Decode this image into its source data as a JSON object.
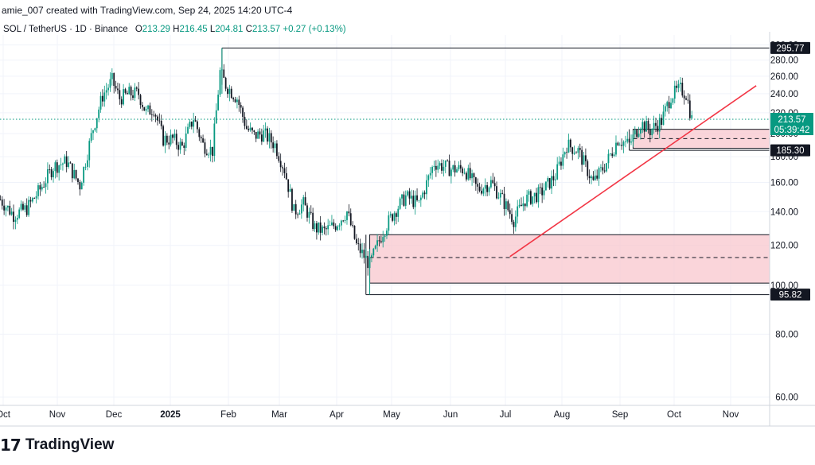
{
  "header": {
    "text": "amie_007 created with TradingView.com, Sep 24, 2025 14:20 UTC-4"
  },
  "ohlc": {
    "symbol": "SOL / TetherUS · 1D · Binance",
    "o_label": "O",
    "o": "213.29",
    "h_label": "H",
    "h": "216.45",
    "l_label": "L",
    "l": "204.81",
    "c_label": "C",
    "c": "213.57",
    "change": "+0.27 (+0.13%)"
  },
  "branding": {
    "logo_mark": "17",
    "name": "TradingView"
  },
  "colors": {
    "up": "#089981",
    "down": "#131722",
    "trendline": "#f23645",
    "zone_fill": "#f8c7cd",
    "last_price": "#089981"
  },
  "chart_data": {
    "type": "candlestick",
    "title": "SOL / TetherUS · 1D · Binance",
    "y_scale": "log",
    "ylim": [
      55,
      300
    ],
    "y_ticks": [
      "300.00",
      "280.00",
      "260.00",
      "240.00",
      "220.00",
      "200.00",
      "180.00",
      "160.00",
      "140.00",
      "120.00",
      "100.00",
      "80.00",
      "60.00"
    ],
    "x_ticks": [
      "Oct",
      "Nov",
      "Dec",
      "2025",
      "Feb",
      "Mar",
      "Apr",
      "May",
      "Jun",
      "Jul",
      "Aug",
      "Sep",
      "Oct",
      "Nov"
    ],
    "price_labels": [
      {
        "label": "295.77",
        "kind": "level"
      },
      {
        "label": "213.57",
        "sub": "05:39:42",
        "kind": "last"
      },
      {
        "label": "185.30",
        "kind": "level"
      },
      {
        "label": "95.82",
        "kind": "level"
      }
    ],
    "horizontal_levels": [
      295.77,
      185.3,
      95.82
    ],
    "zones": [
      {
        "top": 126,
        "bottom": 101,
        "mid": 113.5,
        "start": "2025-04-07"
      },
      {
        "top": 204,
        "bottom": 187,
        "mid": 195.5,
        "start": "2025-08-24"
      }
    ],
    "trendline": {
      "from": {
        "date": "2025-06-20",
        "price": 114
      },
      "to": {
        "date": "2025-10-28",
        "price": 249
      }
    },
    "path": [
      [
        "2024-09-24",
        148
      ],
      [
        "2024-10-01",
        138
      ],
      [
        "2024-10-08",
        142
      ],
      [
        "2024-10-15",
        155
      ],
      [
        "2024-10-22",
        172
      ],
      [
        "2024-10-29",
        176
      ],
      [
        "2024-11-05",
        158
      ],
      [
        "2024-11-12",
        205
      ],
      [
        "2024-11-17",
        238
      ],
      [
        "2024-11-22",
        255
      ],
      [
        "2024-11-26",
        235
      ],
      [
        "2024-12-01",
        240
      ],
      [
        "2024-12-06",
        240
      ],
      [
        "2024-12-10",
        220
      ],
      [
        "2024-12-14",
        225
      ],
      [
        "2024-12-19",
        195
      ],
      [
        "2024-12-24",
        195
      ],
      [
        "2024-12-29",
        188
      ],
      [
        "2025-01-04",
        215
      ],
      [
        "2025-01-09",
        190
      ],
      [
        "2025-01-14",
        185
      ],
      [
        "2025-01-18",
        265
      ],
      [
        "2025-01-21",
        250
      ],
      [
        "2025-01-27",
        235
      ],
      [
        "2025-02-01",
        205
      ],
      [
        "2025-02-05",
        198
      ],
      [
        "2025-02-10",
        200
      ],
      [
        "2025-02-16",
        190
      ],
      [
        "2025-02-21",
        170
      ],
      [
        "2025-02-26",
        140
      ],
      [
        "2025-03-03",
        145
      ],
      [
        "2025-03-09",
        130
      ],
      [
        "2025-03-14",
        128
      ],
      [
        "2025-03-20",
        132
      ],
      [
        "2025-03-26",
        140
      ],
      [
        "2025-03-31",
        120
      ],
      [
        "2025-04-07",
        110
      ],
      [
        "2025-04-14",
        128
      ],
      [
        "2025-04-20",
        140
      ],
      [
        "2025-04-26",
        150
      ],
      [
        "2025-05-03",
        145
      ],
      [
        "2025-05-11",
        175
      ],
      [
        "2025-05-20",
        170
      ],
      [
        "2025-05-27",
        170
      ],
      [
        "2025-06-03",
        155
      ],
      [
        "2025-06-10",
        160
      ],
      [
        "2025-06-16",
        148
      ],
      [
        "2025-06-22",
        135
      ],
      [
        "2025-06-28",
        148
      ],
      [
        "2025-07-06",
        152
      ],
      [
        "2025-07-14",
        165
      ],
      [
        "2025-07-20",
        190
      ],
      [
        "2025-07-26",
        185
      ],
      [
        "2025-08-03",
        160
      ],
      [
        "2025-08-10",
        175
      ],
      [
        "2025-08-16",
        195
      ],
      [
        "2025-08-22",
        190
      ],
      [
        "2025-08-28",
        210
      ],
      [
        "2025-09-02",
        203
      ],
      [
        "2025-09-08",
        212
      ],
      [
        "2025-09-13",
        238
      ],
      [
        "2025-09-18",
        245
      ],
      [
        "2025-09-21",
        240
      ],
      [
        "2025-09-24",
        213.57
      ]
    ],
    "x_date_range": [
      "2024-09-23",
      "2025-11-25"
    ],
    "last_price": 213.57,
    "candles": []
  }
}
